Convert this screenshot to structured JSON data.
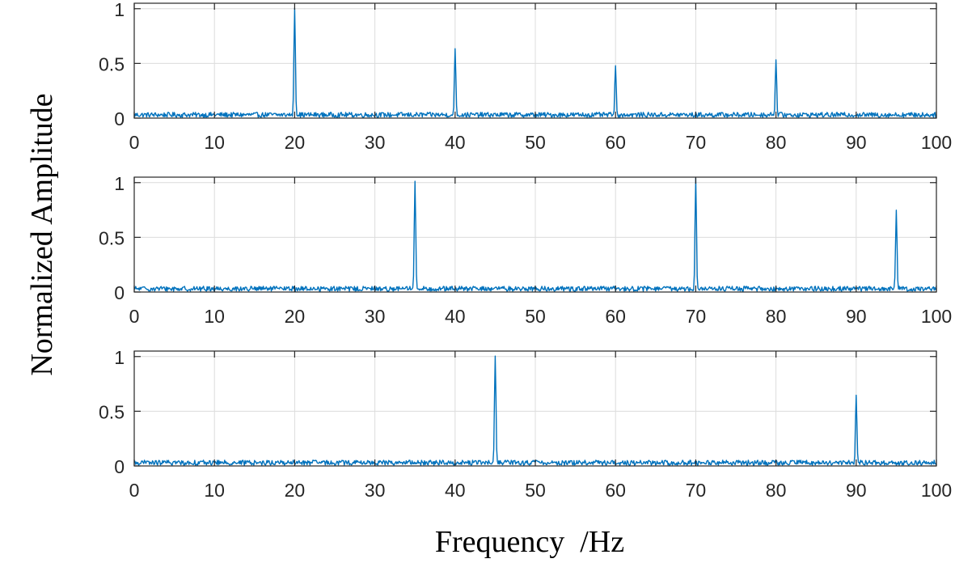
{
  "chart_data": {
    "type": "line",
    "ylabel": "Normalized Amplitude",
    "xlabel": "Frequency  /Hz",
    "line_color": "#0072BD",
    "grid": true,
    "xlim": [
      0,
      100
    ],
    "xticks": [
      0,
      10,
      20,
      30,
      40,
      50,
      60,
      70,
      80,
      90,
      100
    ],
    "xtick_labels": [
      "0",
      "10",
      "20",
      "30",
      "40",
      "50",
      "60",
      "70",
      "80",
      "90",
      "100"
    ],
    "ylim": [
      0,
      1.05
    ],
    "yticks": [
      0,
      0.5,
      1
    ],
    "ytick_labels": [
      "0",
      "0.5",
      "1"
    ],
    "noise_floor": 0.03,
    "panels": [
      {
        "peaks": [
          {
            "x": 20,
            "y": 1.0
          },
          {
            "x": 40,
            "y": 0.62
          },
          {
            "x": 60,
            "y": 0.47
          },
          {
            "x": 80,
            "y": 0.52
          }
        ]
      },
      {
        "peaks": [
          {
            "x": 35,
            "y": 1.0
          },
          {
            "x": 70,
            "y": 1.02
          },
          {
            "x": 95,
            "y": 0.73
          }
        ]
      },
      {
        "peaks": [
          {
            "x": 45,
            "y": 1.0
          },
          {
            "x": 90,
            "y": 0.62
          }
        ]
      }
    ]
  }
}
